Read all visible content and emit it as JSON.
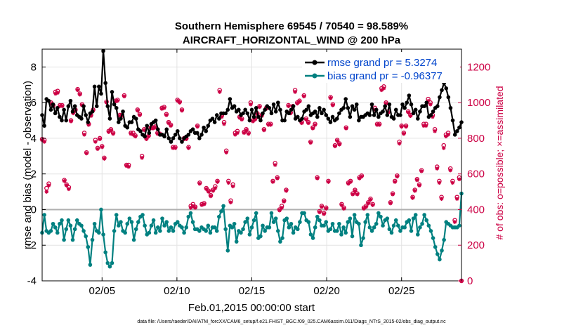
{
  "chart_data": {
    "type": "line",
    "title": [
      "Southern Hemisphere 69545 / 70540 = 98.589%",
      "AIRCRAFT_HORIZONTAL_WIND @ 200 hPa"
    ],
    "xlabel": "Feb.01,2015 00:00:00 start",
    "ylabel_left": "rmse and bias (model - observation)",
    "ylabel_right": "# of obs: o=possible; ×=assimilated",
    "xlim": [
      1,
      29
    ],
    "ylim_left": [
      -4,
      9
    ],
    "ylim_right": [
      0,
      1300
    ],
    "x_ticks": [
      5,
      10,
      15,
      20,
      25
    ],
    "x_tick_labels": [
      "02/05",
      "02/10",
      "02/15",
      "02/20",
      "02/25"
    ],
    "y_ticks_left": [
      -4,
      -2,
      0,
      2,
      4,
      6,
      8
    ],
    "y_ticks_right": [
      0,
      200,
      400,
      600,
      800,
      1000,
      1200
    ],
    "zero_line": 0,
    "footnote": "data file: /Users/raeder/DAI/ATM_forcXX/CAM6_setup/f.e21.FHIST_BGC.f09_025.CAM6assim.011/Diags_NTrS_2015-02/obs_diag_output.nc",
    "colors": {
      "rmse": "#000000",
      "bias": "#008080",
      "obs": "#cc0044",
      "zero": "#b0b0b0",
      "legend_text": "#0044cc"
    },
    "series": [
      {
        "name": "rmse grand pr = 5.3274",
        "values": [
          5.3,
          4.7,
          6.2,
          6.1,
          5.6,
          5.9,
          5.4,
          5.7,
          5.2,
          5.0,
          5.6,
          5.0,
          5.8,
          6.1,
          5.5,
          5.8,
          5.3,
          5.2,
          5.1,
          5.8,
          5.3,
          4.9,
          5.4,
          5.5,
          6.9,
          5.8,
          6.9,
          6.5,
          8.9,
          7.1,
          5.8,
          5.1,
          6.6,
          5.9,
          5.7,
          4.9,
          5.1,
          5.5,
          4.7,
          4.6,
          4.9,
          4.9,
          5.2,
          5.1,
          4.5,
          4.4,
          4.2,
          4.1,
          4.7,
          4.3,
          4.8,
          4.9,
          5.0,
          4.5,
          4.2,
          4.2,
          4.1,
          4.5,
          4.0,
          3.8,
          4.0,
          4.2,
          4.4,
          4.0,
          3.8,
          4.0,
          4.1,
          4.2,
          4.4,
          4.5,
          4.3,
          4.3,
          4.0,
          4.2,
          4.6,
          4.4,
          4.7,
          5.0,
          5.1,
          4.9,
          5.3,
          5.1,
          5.4,
          5.4,
          5.4,
          5.6,
          6.2,
          5.7,
          5.8,
          5.5,
          5.6,
          5.3,
          5.4,
          5.6,
          5.4,
          5.0,
          5.6,
          5.2,
          5.7,
          5.2,
          5.0,
          5.4,
          5.6,
          5.8,
          5.7,
          5.4,
          5.9,
          5.5,
          6.0,
          5.6,
          5.0,
          5.0,
          5.5,
          5.4,
          5.6,
          5.8,
          5.1,
          5.2,
          5.0,
          5.1,
          5.5,
          5.6,
          5.8,
          5.3,
          5.4,
          5.5,
          5.2,
          5.7,
          5.4,
          5.6,
          5.3,
          5.1,
          4.9,
          5.2,
          5.0,
          5.1,
          5.4,
          5.6,
          5.7,
          6.2,
          5.7,
          5.2,
          5.8,
          5.6,
          5.9,
          5.0,
          5.2,
          5.2,
          5.3,
          5.4,
          5.3,
          5.9,
          5.3,
          5.6,
          5.2,
          5.4,
          5.5,
          5.8,
          5.3,
          5.9,
          5.2,
          5.1,
          5.6,
          5.3,
          5.3,
          5.9,
          5.7,
          6.0,
          6.4,
          5.9,
          5.4,
          5.6,
          5.1,
          5.5,
          5.8,
          5.8,
          6.0,
          5.2,
          5.3,
          5.5,
          5.7,
          5.8,
          6.3,
          6.7,
          7.1,
          6.8,
          6.3,
          5.7,
          5.0,
          4.2,
          4.4,
          4.6,
          4.9
        ]
      },
      {
        "name": "bias grand pr = -0.96377",
        "values": [
          -1.3,
          -0.3,
          -1.2,
          -1.3,
          -1.2,
          -0.8,
          -1.0,
          -1.3,
          -0.8,
          -0.6,
          -1.7,
          -1.1,
          -0.6,
          -0.9,
          -1.7,
          -1.1,
          -0.6,
          -0.8,
          -0.9,
          -1.2,
          -1.5,
          -2.1,
          -3.1,
          -1.7,
          -0.8,
          -1.2,
          -1.3,
          0.0,
          -1.4,
          -2.4,
          -3.0,
          -3.2,
          -3.0,
          -1.2,
          -0.3,
          -0.9,
          -0.7,
          -1.2,
          -1.3,
          -0.8,
          -0.5,
          -0.7,
          -1.7,
          -1.1,
          -0.7,
          -0.4,
          -0.3,
          -0.9,
          -1.4,
          -1.3,
          -0.9,
          -0.6,
          -1.3,
          -1.0,
          -1.2,
          -0.5,
          -0.9,
          -0.7,
          -1.2,
          -1.0,
          -1.2,
          -0.8,
          -0.7,
          -0.9,
          -1.0,
          -1.3,
          -1.0,
          -0.4,
          -0.2,
          -0.7,
          -1.1,
          -1.1,
          -1.2,
          -1.0,
          -1.1,
          -1.2,
          -0.9,
          -1.3,
          -1.0,
          -1.0,
          -1.2,
          -0.4,
          -0.1,
          0.2,
          -1.1,
          -2.3,
          -0.9,
          -1.0,
          -0.8,
          -1.8,
          -1.2,
          -1.3,
          -1.1,
          -0.7,
          -0.5,
          -1.4,
          -1.0,
          -0.6,
          -0.2,
          -1.6,
          -1.5,
          -0.9,
          -1.2,
          -1.0,
          -1.0,
          -0.2,
          -0.7,
          -0.5,
          -1.2,
          -1.8,
          -1.6,
          -0.6,
          -0.5,
          -1.0,
          -0.8,
          -1.3,
          -1.0,
          -1.1,
          -0.7,
          -0.2,
          -0.2,
          -0.6,
          -0.7,
          -1.4,
          -1.6,
          -1.0,
          -0.4,
          -0.6,
          -0.9,
          -0.9,
          -0.7,
          -1.2,
          -1.1,
          -0.8,
          -1.2,
          -1.2,
          -0.8,
          -1.4,
          -1.0,
          -1.3,
          -0.7,
          -0.5,
          -1.5,
          -0.3,
          -0.7,
          -0.8,
          -2.0,
          -1.6,
          -0.7,
          -0.3,
          -1.0,
          -1.2,
          -1.0,
          -0.8,
          -0.2,
          -0.4,
          -0.9,
          -0.6,
          -0.5,
          -1.1,
          -1.3,
          -0.9,
          -0.6,
          -0.9,
          -1.2,
          -1.0,
          -1.0,
          -0.7,
          -0.6,
          -1.2,
          -0.5,
          -0.3,
          -1.4,
          -1.0,
          -0.8,
          -0.3,
          -0.6,
          -0.9,
          -1.2,
          -1.6,
          -2.1,
          -2.5,
          -2.8,
          -2.3,
          -1.7,
          -0.7,
          -0.8,
          -0.9,
          -1.0,
          -1.0,
          -1.0,
          -0.9,
          0.9
        ]
      },
      {
        "name": "obs possible",
        "values": [
          795,
          790,
          520,
          545,
          1000,
          985,
          1060,
          1065,
          985,
          985,
          565,
          540,
          525,
          900,
          945,
          960,
          1075,
          1050,
          990,
          830,
          720,
          880,
          930,
          960,
          790,
          745,
          800,
          755,
          690,
          1005,
          840,
          850,
          830,
          1010,
          1015,
          930,
          930,
          1040,
          650,
          650,
          830,
          830,
          815,
          960,
          935,
          700,
          850,
          800,
          815,
          860,
          860,
          865,
          830,
          825,
          970,
          975,
          935,
          890,
          875,
          750,
          750,
          1015,
          1005,
          960,
          800,
          800,
          750,
          420,
          430,
          415,
          870,
          550,
          430,
          435,
          520,
          505,
          480,
          510,
          530,
          560,
          1070,
          930,
          890,
          730,
          560,
          450,
          540,
          830,
          840,
          920,
          910,
          835,
          850,
          830,
          1000,
          900,
          910,
          940,
          980,
          930,
          850,
          970,
          880,
          880,
          560,
          660,
          580,
          400,
          420,
          450,
          510,
          985,
          945,
          980,
          1070,
          1000,
          1010,
          890,
          1040,
          910,
          890,
          780,
          860,
          880,
          580,
          390,
          420,
          380,
          410,
          560,
          1030,
          990,
          760,
          790,
          770,
          430,
          410,
          860,
          550,
          560,
          490,
          510,
          490,
          580,
          590,
          410,
          420,
          440,
          460,
          430,
          970,
          880,
          880,
          1080,
          1090,
          1000,
          950,
          440,
          490,
          560,
          590,
          780,
          870,
          830,
          870,
          950,
          930,
          470,
          510,
          570,
          540,
          620,
          880,
          880,
          1020,
          1000,
          930,
          850,
          640,
          560,
          470,
          760,
          820,
          830,
          630,
          560,
          340,
          470,
          580,
          0
        ]
      },
      {
        "name": "obs assimilated",
        "values": [
          790,
          780,
          500,
          535,
          995,
          980,
          1050,
          1055,
          980,
          980,
          560,
          535,
          515,
          895,
          940,
          955,
          1070,
          1045,
          985,
          820,
          715,
          875,
          925,
          955,
          780,
          740,
          795,
          750,
          685,
          1000,
          835,
          845,
          825,
          1005,
          1010,
          925,
          925,
          1035,
          645,
          640,
          825,
          820,
          810,
          955,
          930,
          690,
          845,
          795,
          810,
          855,
          855,
          860,
          825,
          820,
          965,
          970,
          930,
          885,
          870,
          745,
          745,
          1010,
          1000,
          955,
          795,
          795,
          745,
          410,
          420,
          410,
          865,
          545,
          425,
          430,
          515,
          500,
          475,
          505,
          520,
          555,
          1060,
          920,
          880,
          720,
          550,
          440,
          530,
          820,
          830,
          915,
          905,
          830,
          845,
          825,
          990,
          895,
          905,
          935,
          975,
          925,
          845,
          965,
          875,
          875,
          555,
          650,
          575,
          395,
          410,
          445,
          505,
          980,
          940,
          975,
          1060,
          995,
          1005,
          885,
          1035,
          905,
          885,
          775,
          855,
          875,
          575,
          385,
          415,
          375,
          405,
          555,
          1025,
          985,
          755,
          785,
          765,
          425,
          405,
          855,
          545,
          555,
          485,
          505,
          485,
          575,
          585,
          405,
          415,
          435,
          455,
          425,
          960,
          875,
          875,
          1070,
          1080,
          995,
          945,
          435,
          485,
          555,
          585,
          770,
          865,
          825,
          865,
          945,
          925,
          465,
          505,
          565,
          535,
          615,
          870,
          870,
          1010,
          990,
          920,
          840,
          630,
          550,
          460,
          745,
          810,
          820,
          620,
          550,
          330,
          460,
          570,
          0
        ]
      }
    ]
  }
}
